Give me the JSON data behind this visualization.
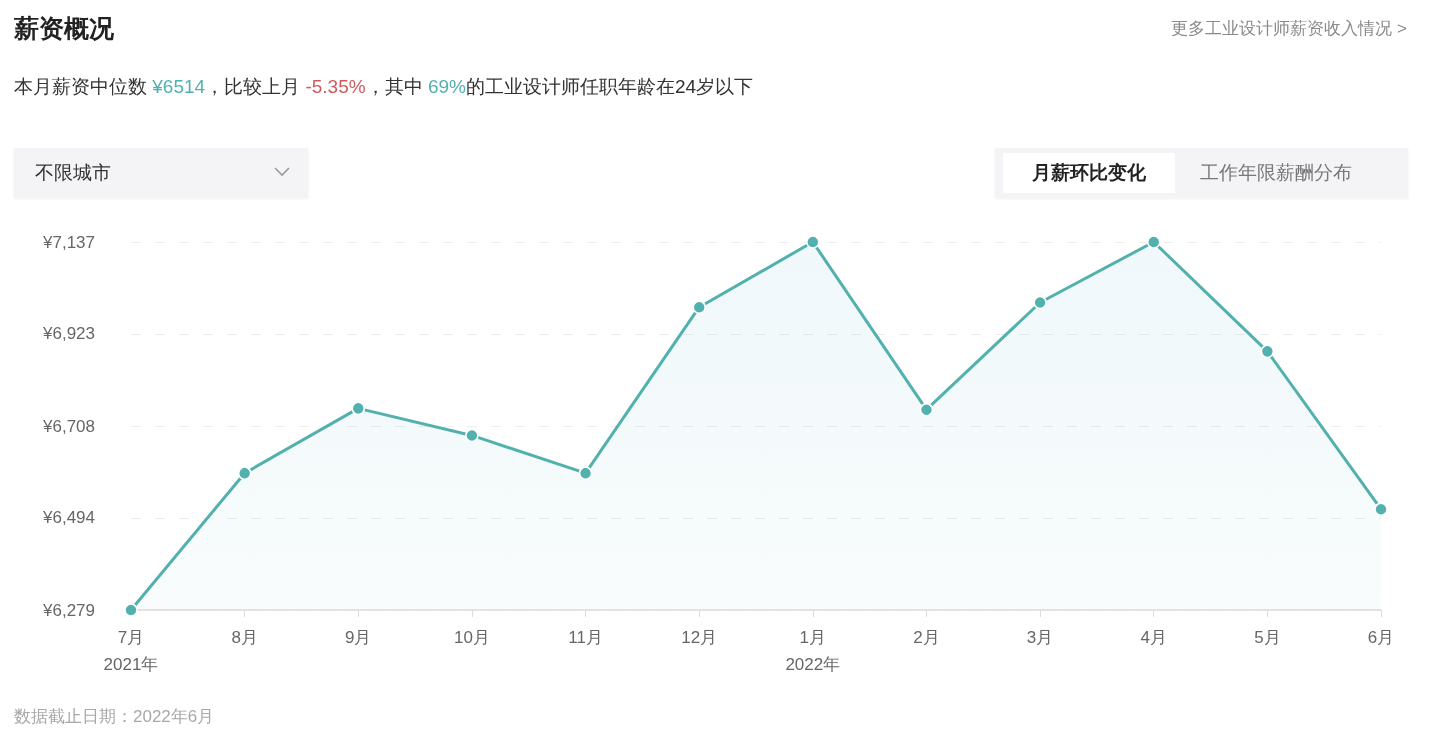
{
  "chart_data": {
    "type": "area",
    "title": "薪资概况",
    "subtitle": "本月薪资中位数 ¥6514，比较上月 -5.35%，其中 69%的工业设计师任职年龄在24岁以下",
    "annotations": [
      "更多工业设计师薪资收入情况 >",
      "不限城市",
      "月薪环比变化",
      "工作年限薪酬分布",
      "数据截止日期：2022年6月"
    ],
    "categories": [
      "7月\n2021年",
      "8月",
      "9月",
      "10月",
      "11月",
      "12月",
      "1月\n2022年",
      "2月",
      "3月",
      "4月",
      "5月",
      "6月"
    ],
    "values": [
      6279,
      6598,
      6749,
      6686,
      6598,
      6985,
      7137,
      6746,
      6996,
      7137,
      6882,
      6514
    ],
    "color": "#52b1ae",
    "ylim": [
      6279,
      7137
    ],
    "yticks": [
      {
        "value": 6279,
        "label": "¥6,279"
      },
      {
        "value": 6494,
        "label": "¥6,494"
      },
      {
        "value": 6708,
        "label": "¥6,708"
      },
      {
        "value": 6923,
        "label": "¥6,923"
      },
      {
        "value": 7137,
        "label": "¥7,137"
      }
    ],
    "grid": "y",
    "marker": "circle",
    "line_style": "solid"
  }
}
